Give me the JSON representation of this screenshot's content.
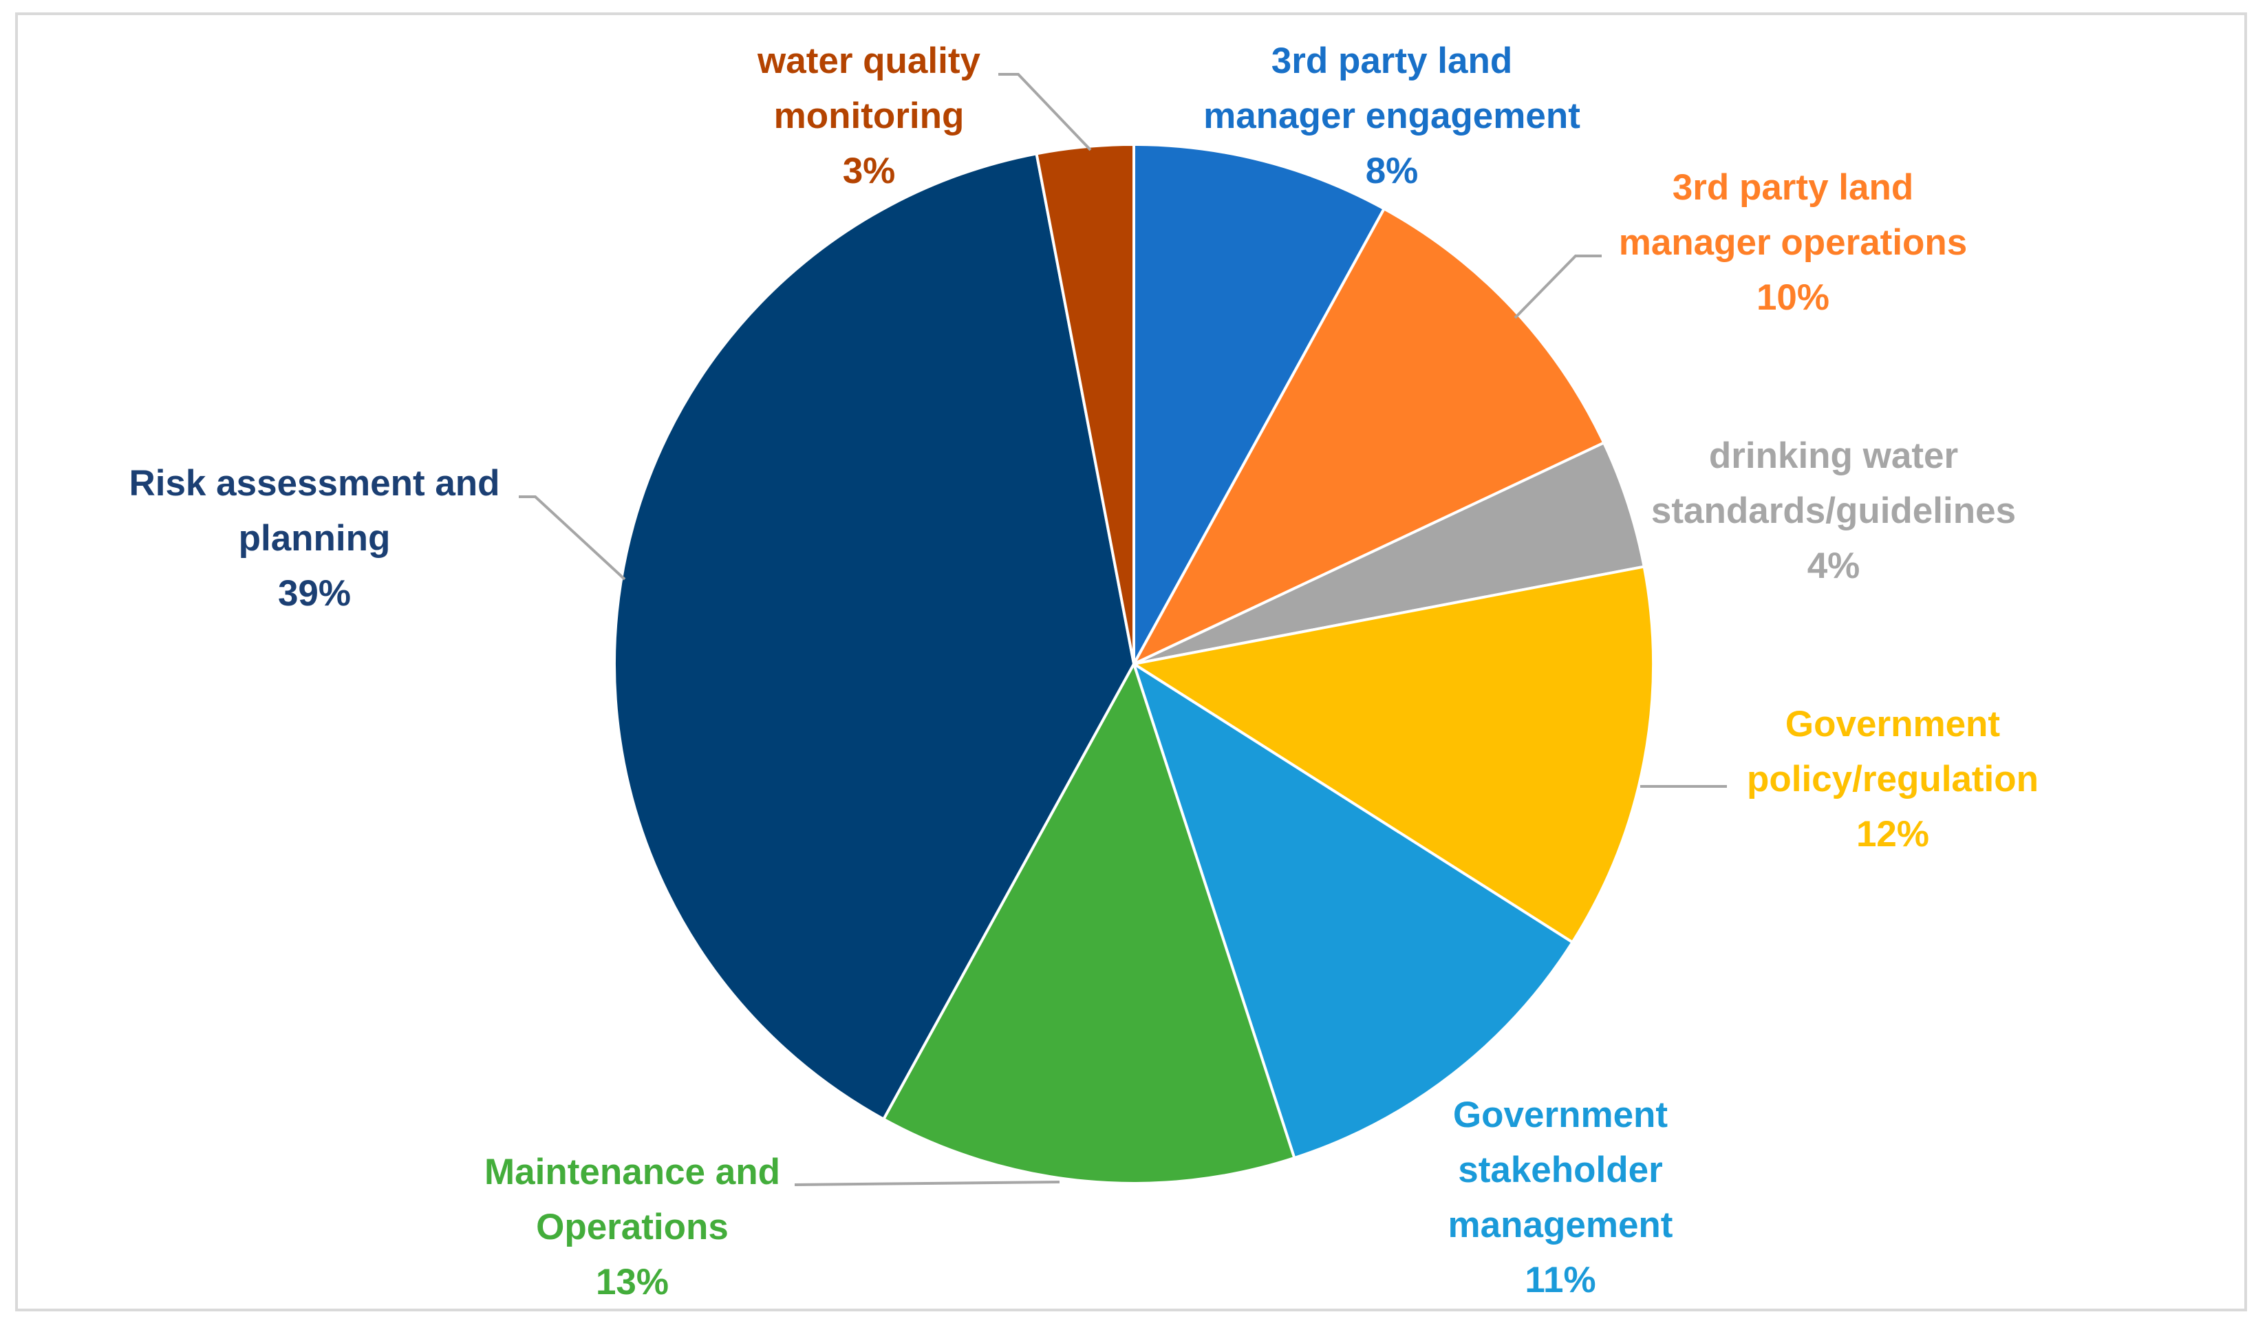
{
  "chart_data": {
    "type": "pie",
    "title": "",
    "start_angle_deg": 0,
    "direction": "clockwise",
    "slices": [
      {
        "label_lines": [
          "3rd party land",
          "manager engagement"
        ],
        "pct_text": "8%",
        "value": 8,
        "color": "#1870c8"
      },
      {
        "label_lines": [
          "3rd party land",
          "manager operations"
        ],
        "pct_text": "10%",
        "value": 10,
        "color": "#ff7f27"
      },
      {
        "label_lines": [
          "drinking water",
          "standards/guidelines"
        ],
        "pct_text": "4%",
        "value": 4,
        "color": "#a6a6a6"
      },
      {
        "label_lines": [
          "Government",
          "policy/regulation"
        ],
        "pct_text": "12%",
        "value": 12,
        "color": "#ffc000"
      },
      {
        "label_lines": [
          "Government",
          "stakeholder",
          "management"
        ],
        "pct_text": "11%",
        "value": 11,
        "color": "#1a9ad9"
      },
      {
        "label_lines": [
          "Maintenance and",
          "Operations"
        ],
        "pct_text": "13%",
        "value": 13,
        "color": "#43ad3b"
      },
      {
        "label_lines": [
          "Risk assessment and",
          "planning"
        ],
        "pct_text": "39%",
        "value": 39,
        "color": "#003f74"
      },
      {
        "label_lines": [
          "water quality",
          "monitoring"
        ],
        "pct_text": "3%",
        "value": 3,
        "color": "#b44300"
      }
    ],
    "label_text_colors": [
      "#1870c8",
      "#ff7f27",
      "#a6a6a6",
      "#ffc000",
      "#1a9ad9",
      "#43ad3b",
      "#1b3f73",
      "#b44300"
    ],
    "leader_line_color": "#a6a6a6"
  }
}
